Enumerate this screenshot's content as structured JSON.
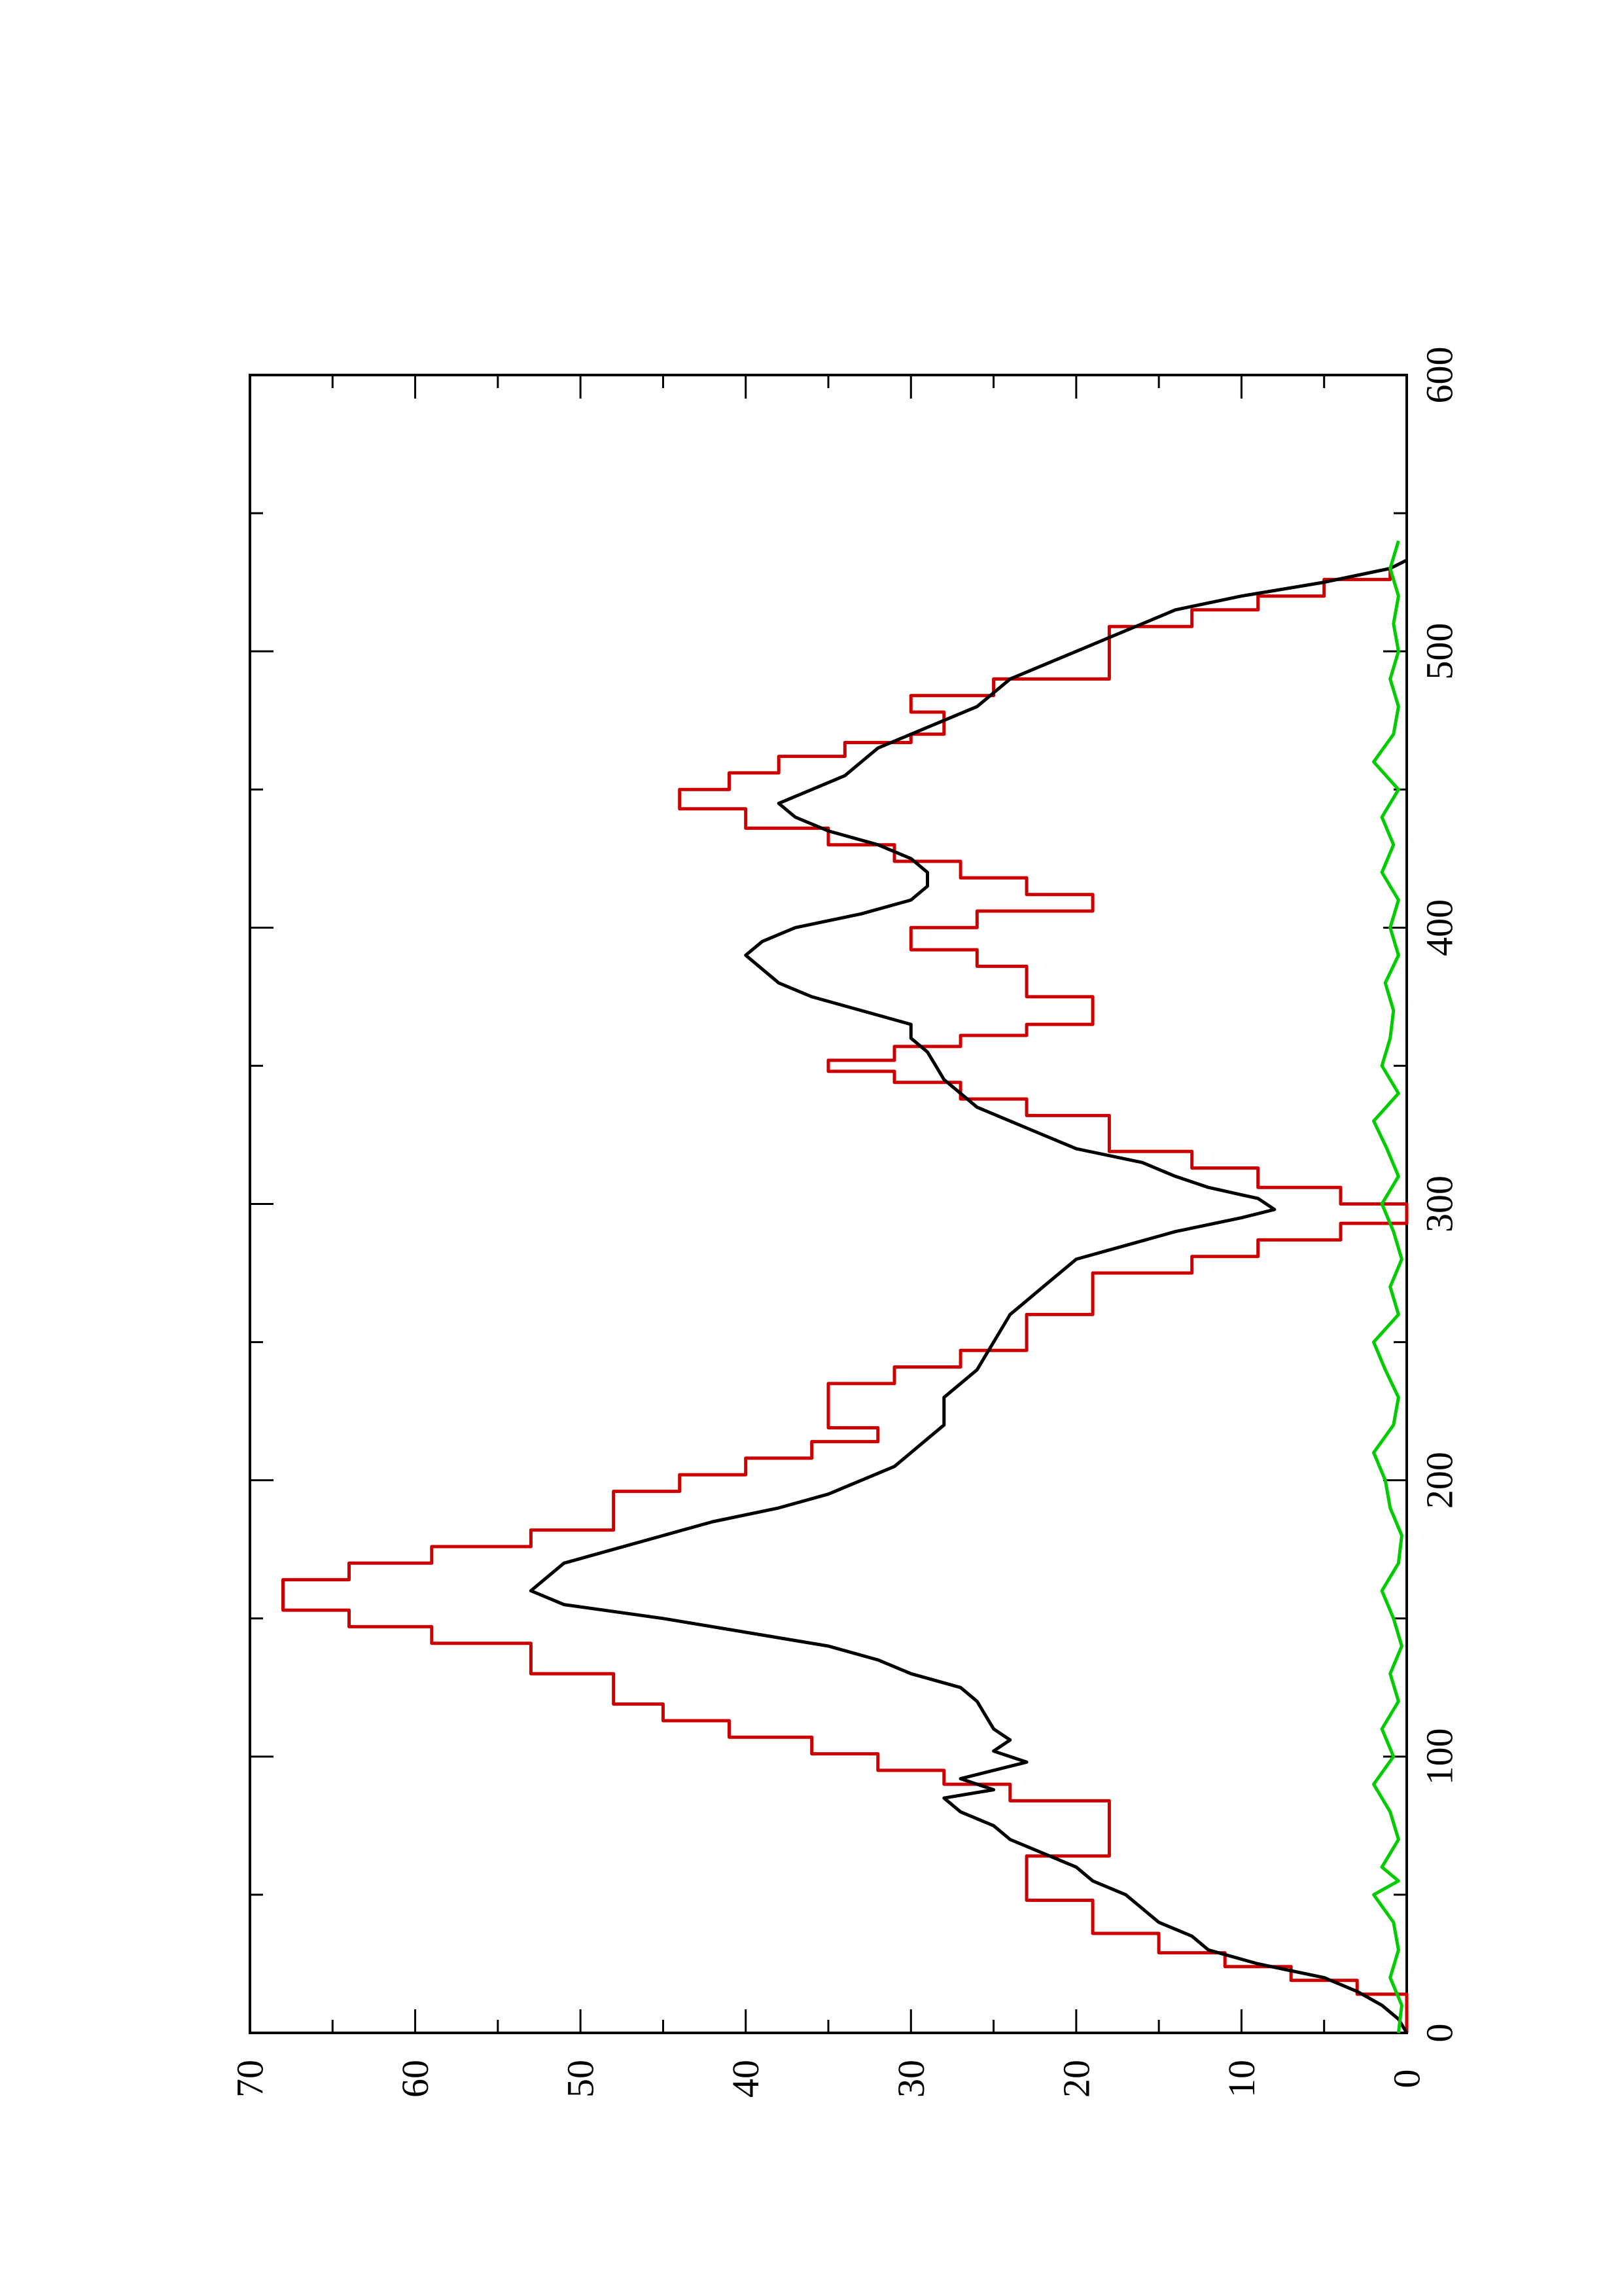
{
  "chart_data": {
    "type": "line",
    "orientation": "rotated-90-ccw",
    "title": "",
    "xlabel": "",
    "ylabel": "",
    "xlim": [
      0,
      600
    ],
    "ylim": [
      0,
      70
    ],
    "x_ticks": [
      0,
      100,
      200,
      300,
      400,
      500,
      600
    ],
    "x_minor_ticks": [
      50,
      150,
      250,
      350,
      450,
      550
    ],
    "y_ticks": [
      0,
      10,
      20,
      30,
      40,
      50,
      60,
      70
    ],
    "y_minor_ticks": [
      5,
      15,
      25,
      35,
      45,
      55,
      65
    ],
    "grid": false,
    "legend": "none",
    "series": [
      {
        "color": "#cc0000",
        "step": true,
        "points": [
          [
            0,
            0
          ],
          [
            14,
            0
          ],
          [
            14,
            3
          ],
          [
            19,
            3
          ],
          [
            19,
            7
          ],
          [
            24,
            7
          ],
          [
            24,
            11
          ],
          [
            29,
            11
          ],
          [
            29,
            15
          ],
          [
            36,
            15
          ],
          [
            36,
            19
          ],
          [
            48,
            19
          ],
          [
            48,
            23
          ],
          [
            64,
            23
          ],
          [
            64,
            18
          ],
          [
            84,
            18
          ],
          [
            84,
            24
          ],
          [
            90,
            24
          ],
          [
            90,
            28
          ],
          [
            95,
            28
          ],
          [
            95,
            32
          ],
          [
            101,
            32
          ],
          [
            101,
            36
          ],
          [
            107,
            36
          ],
          [
            107,
            41
          ],
          [
            113,
            41
          ],
          [
            113,
            45
          ],
          [
            119,
            45
          ],
          [
            119,
            48
          ],
          [
            130,
            48
          ],
          [
            130,
            53
          ],
          [
            141,
            53
          ],
          [
            141,
            59
          ],
          [
            147,
            59
          ],
          [
            147,
            64
          ],
          [
            153,
            64
          ],
          [
            153,
            68
          ],
          [
            164,
            68
          ],
          [
            164,
            64
          ],
          [
            170,
            64
          ],
          [
            170,
            59
          ],
          [
            176,
            59
          ],
          [
            176,
            53
          ],
          [
            182,
            53
          ],
          [
            182,
            48
          ],
          [
            196,
            48
          ],
          [
            196,
            44
          ],
          [
            202,
            44
          ],
          [
            202,
            40
          ],
          [
            208,
            40
          ],
          [
            208,
            36
          ],
          [
            214,
            36
          ],
          [
            214,
            32
          ],
          [
            219,
            32
          ],
          [
            219,
            35
          ],
          [
            235,
            35
          ],
          [
            235,
            31
          ],
          [
            241,
            31
          ],
          [
            241,
            27
          ],
          [
            247,
            27
          ],
          [
            247,
            23
          ],
          [
            260,
            23
          ],
          [
            260,
            19
          ],
          [
            275,
            19
          ],
          [
            275,
            13
          ],
          [
            281,
            13
          ],
          [
            281,
            9
          ],
          [
            287,
            9
          ],
          [
            287,
            4
          ],
          [
            293,
            4
          ],
          [
            293,
            0
          ],
          [
            300,
            0
          ],
          [
            300,
            4
          ],
          [
            306,
            4
          ],
          [
            306,
            9
          ],
          [
            313,
            9
          ],
          [
            313,
            13
          ],
          [
            319,
            13
          ],
          [
            319,
            18
          ],
          [
            332,
            18
          ],
          [
            332,
            23
          ],
          [
            338,
            23
          ],
          [
            338,
            27
          ],
          [
            344,
            27
          ],
          [
            344,
            31
          ],
          [
            348,
            31
          ],
          [
            348,
            35
          ],
          [
            352,
            35
          ],
          [
            352,
            31
          ],
          [
            357,
            31
          ],
          [
            357,
            27
          ],
          [
            361,
            27
          ],
          [
            361,
            23
          ],
          [
            365,
            23
          ],
          [
            365,
            19
          ],
          [
            375,
            19
          ],
          [
            375,
            23
          ],
          [
            386,
            23
          ],
          [
            386,
            26
          ],
          [
            392,
            26
          ],
          [
            392,
            30
          ],
          [
            400,
            30
          ],
          [
            400,
            26
          ],
          [
            406,
            26
          ],
          [
            406,
            19
          ],
          [
            412,
            19
          ],
          [
            412,
            23
          ],
          [
            418,
            23
          ],
          [
            418,
            27
          ],
          [
            424,
            27
          ],
          [
            424,
            31
          ],
          [
            430,
            31
          ],
          [
            430,
            35
          ],
          [
            436,
            35
          ],
          [
            436,
            40
          ],
          [
            443,
            40
          ],
          [
            443,
            44
          ],
          [
            450,
            44
          ],
          [
            450,
            41
          ],
          [
            456,
            41
          ],
          [
            456,
            38
          ],
          [
            462,
            38
          ],
          [
            462,
            34
          ],
          [
            467,
            34
          ],
          [
            467,
            30
          ],
          [
            470,
            30
          ],
          [
            470,
            28
          ],
          [
            478,
            28
          ],
          [
            478,
            30
          ],
          [
            484,
            30
          ],
          [
            484,
            25
          ],
          [
            490,
            25
          ],
          [
            490,
            18
          ],
          [
            509,
            18
          ],
          [
            509,
            13
          ],
          [
            515,
            13
          ],
          [
            515,
            9
          ],
          [
            520,
            9
          ],
          [
            520,
            5
          ],
          [
            526,
            5
          ],
          [
            526,
            1
          ],
          [
            530,
            1
          ]
        ]
      },
      {
        "color": "#000000",
        "step": false,
        "points": [
          [
            0,
            0
          ],
          [
            5,
            0.5
          ],
          [
            10,
            1.5
          ],
          [
            15,
            3
          ],
          [
            20,
            5
          ],
          [
            25,
            9
          ],
          [
            30,
            12
          ],
          [
            35,
            13
          ],
          [
            40,
            15
          ],
          [
            45,
            16
          ],
          [
            50,
            17
          ],
          [
            55,
            19
          ],
          [
            60,
            20
          ],
          [
            65,
            22
          ],
          [
            70,
            24
          ],
          [
            75,
            25
          ],
          [
            80,
            27
          ],
          [
            85,
            28
          ],
          [
            88,
            25
          ],
          [
            92,
            27
          ],
          [
            98,
            23
          ],
          [
            102,
            25
          ],
          [
            106,
            24
          ],
          [
            110,
            25
          ],
          [
            115,
            25.5
          ],
          [
            120,
            26
          ],
          [
            125,
            27
          ],
          [
            130,
            30
          ],
          [
            135,
            32
          ],
          [
            140,
            35
          ],
          [
            145,
            40
          ],
          [
            150,
            45
          ],
          [
            155,
            51
          ],
          [
            160,
            53
          ],
          [
            165,
            52
          ],
          [
            170,
            51
          ],
          [
            175,
            48
          ],
          [
            180,
            45
          ],
          [
            185,
            42
          ],
          [
            190,
            38
          ],
          [
            195,
            35
          ],
          [
            200,
            33
          ],
          [
            205,
            31
          ],
          [
            210,
            30
          ],
          [
            215,
            29
          ],
          [
            220,
            28
          ],
          [
            225,
            28
          ],
          [
            230,
            28
          ],
          [
            235,
            27
          ],
          [
            240,
            26
          ],
          [
            245,
            25.5
          ],
          [
            250,
            25
          ],
          [
            255,
            24.5
          ],
          [
            260,
            24
          ],
          [
            265,
            23
          ],
          [
            270,
            22
          ],
          [
            275,
            21
          ],
          [
            280,
            20
          ],
          [
            285,
            17
          ],
          [
            290,
            14
          ],
          [
            295,
            10
          ],
          [
            298,
            8
          ],
          [
            302,
            9
          ],
          [
            306,
            12
          ],
          [
            310,
            14
          ],
          [
            315,
            16
          ],
          [
            320,
            20
          ],
          [
            325,
            22
          ],
          [
            330,
            24
          ],
          [
            335,
            26
          ],
          [
            340,
            27
          ],
          [
            345,
            28
          ],
          [
            350,
            28.5
          ],
          [
            355,
            29
          ],
          [
            360,
            30
          ],
          [
            365,
            30
          ],
          [
            370,
            33
          ],
          [
            375,
            36
          ],
          [
            380,
            38
          ],
          [
            385,
            39
          ],
          [
            390,
            40
          ],
          [
            395,
            39
          ],
          [
            400,
            37
          ],
          [
            405,
            33
          ],
          [
            410,
            30
          ],
          [
            415,
            29
          ],
          [
            420,
            29
          ],
          [
            425,
            30
          ],
          [
            430,
            32
          ],
          [
            435,
            35
          ],
          [
            440,
            37
          ],
          [
            445,
            38
          ],
          [
            450,
            36
          ],
          [
            455,
            34
          ],
          [
            460,
            33
          ],
          [
            465,
            32
          ],
          [
            470,
            30
          ],
          [
            475,
            28
          ],
          [
            480,
            26
          ],
          [
            485,
            25
          ],
          [
            490,
            24
          ],
          [
            495,
            22
          ],
          [
            500,
            20
          ],
          [
            505,
            18
          ],
          [
            510,
            16
          ],
          [
            515,
            14
          ],
          [
            520,
            10
          ],
          [
            525,
            5
          ],
          [
            530,
            1
          ],
          [
            533,
            0
          ]
        ]
      },
      {
        "color": "#00cc00",
        "step": false,
        "points": [
          [
            0,
            0.5
          ],
          [
            10,
            0.3
          ],
          [
            20,
            1
          ],
          [
            30,
            0.5
          ],
          [
            40,
            0.8
          ],
          [
            50,
            2
          ],
          [
            55,
            0.5
          ],
          [
            60,
            1.5
          ],
          [
            70,
            0.5
          ],
          [
            80,
            1
          ],
          [
            90,
            2
          ],
          [
            100,
            0.8
          ],
          [
            110,
            1.5
          ],
          [
            120,
            0.5
          ],
          [
            130,
            1
          ],
          [
            140,
            0.3
          ],
          [
            150,
            0.8
          ],
          [
            160,
            1.5
          ],
          [
            170,
            0.5
          ],
          [
            180,
            0.3
          ],
          [
            190,
            1
          ],
          [
            200,
            1.3
          ],
          [
            210,
            2
          ],
          [
            220,
            0.8
          ],
          [
            230,
            0.5
          ],
          [
            240,
            1.3
          ],
          [
            250,
            2
          ],
          [
            260,
            0.5
          ],
          [
            270,
            1
          ],
          [
            280,
            0.3
          ],
          [
            290,
            0.8
          ],
          [
            300,
            1.5
          ],
          [
            310,
            0.5
          ],
          [
            320,
            1.2
          ],
          [
            330,
            2
          ],
          [
            340,
            0.5
          ],
          [
            350,
            1.5
          ],
          [
            360,
            1
          ],
          [
            370,
            0.8
          ],
          [
            380,
            1.3
          ],
          [
            390,
            0.5
          ],
          [
            400,
            1
          ],
          [
            410,
            0.5
          ],
          [
            420,
            1.5
          ],
          [
            430,
            0.8
          ],
          [
            440,
            1.5
          ],
          [
            450,
            0.5
          ],
          [
            460,
            2
          ],
          [
            470,
            0.8
          ],
          [
            480,
            0.5
          ],
          [
            490,
            1
          ],
          [
            500,
            0.5
          ],
          [
            510,
            0.8
          ],
          [
            520,
            0.5
          ],
          [
            530,
            1
          ],
          [
            540,
            0.5
          ]
        ]
      }
    ]
  }
}
